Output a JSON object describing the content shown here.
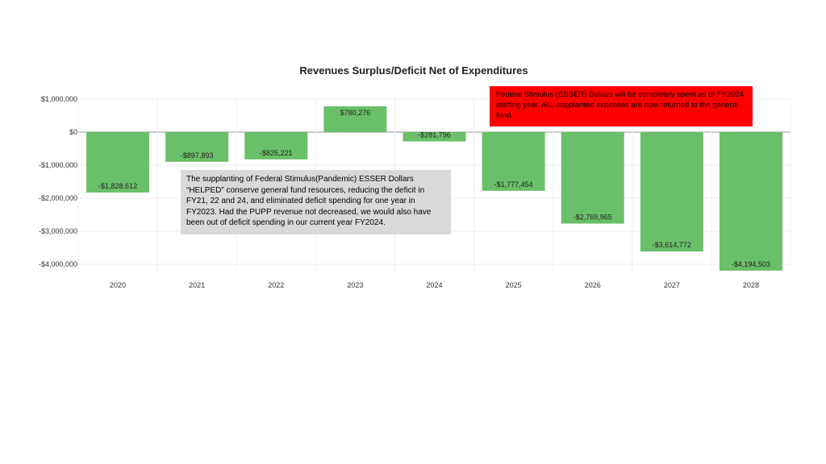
{
  "chart_data": {
    "type": "bar",
    "title": "Revenues Surplus/Deficit Net of Expenditures",
    "xlabel": "",
    "ylabel": "",
    "categories": [
      "2020",
      "2021",
      "2022",
      "2023",
      "2024",
      "2025",
      "2026",
      "2027",
      "2028"
    ],
    "values": [
      -1828612,
      -897893,
      -825221,
      780276,
      -281796,
      -1777454,
      -2769965,
      -3614772,
      -4194503
    ],
    "data_labels": [
      "-$1,828,612",
      "-$897,893",
      "-$825,221",
      "$780,276",
      "-$281,796",
      "-$1,777,454",
      "-$2,769,965",
      "-$3,614,772",
      "-$4,194,503"
    ],
    "y_ticks": [
      1000000,
      0,
      -1000000,
      -2000000,
      -3000000,
      -4000000
    ],
    "y_tick_labels": [
      "$1,000,000",
      "$0",
      "-$1,000,000",
      "-$2,000,000",
      "-$3,000,000",
      "-$4,000,000"
    ],
    "ylim": [
      -4200000,
      1000000
    ],
    "bar_color": "#6abf69",
    "grid": true,
    "legend": "none"
  },
  "annotations": {
    "red_note": "Federal Stimulus (ESSER) Dollars will be completely spent as of FY2024  staffing year. ALL supplanted expenses are now returned to the general fund.",
    "gray_note": "The supplanting of Federal Stimulus(Pandemic) ESSER Dollars “HELPED” conserve general fund resources, reducing the deficit in FY21, 22 and 24, and eliminated deficit spending for one year in FY2023. Had the PUPP revenue not decreased, we would also have been out of deficit spending in our current year FY2024.",
    "red_color": "#ff0000",
    "gray_color": "#d9d9d9"
  }
}
